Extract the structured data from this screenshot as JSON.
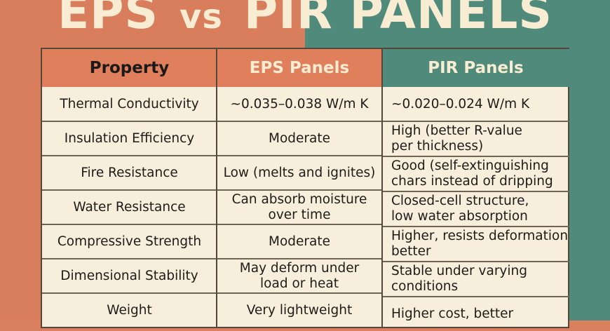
{
  "title": {
    "part1": "EPS",
    "vs": "vs",
    "part2": "PIR PANELS"
  },
  "colors": {
    "eps_accent": "#e07f5c",
    "pir_accent": "#4f8a7b",
    "cream": "#f7eedb"
  },
  "table": {
    "headers": [
      "Property",
      "EPS Panels",
      "PIR Panels"
    ],
    "rows": [
      [
        "Thermal Conductivity",
        "~0.035–0.038 W/m K",
        "~0.020–0.024 W/m K"
      ],
      [
        "Insulation Efficiency",
        "Moderate",
        "High (better R-value\nper thickness)"
      ],
      [
        "Fire Resistance",
        "Low (melts and ignites)",
        "Good (self-extinguishing\nchars instead of dripping"
      ],
      [
        "Water Resistance",
        "Can absorb moisture\nover time",
        "Closed-cell structure,\nlow water absorption"
      ],
      [
        "Compressive Strength",
        "Moderate",
        "Higher, resists deformation\nbetter"
      ],
      [
        "Dimensional Stability",
        "May deform under\nload or heat",
        "Stable under varying\nconditions"
      ],
      [
        "Weight",
        "Very lightweight",
        "Higher cost, better"
      ]
    ]
  }
}
